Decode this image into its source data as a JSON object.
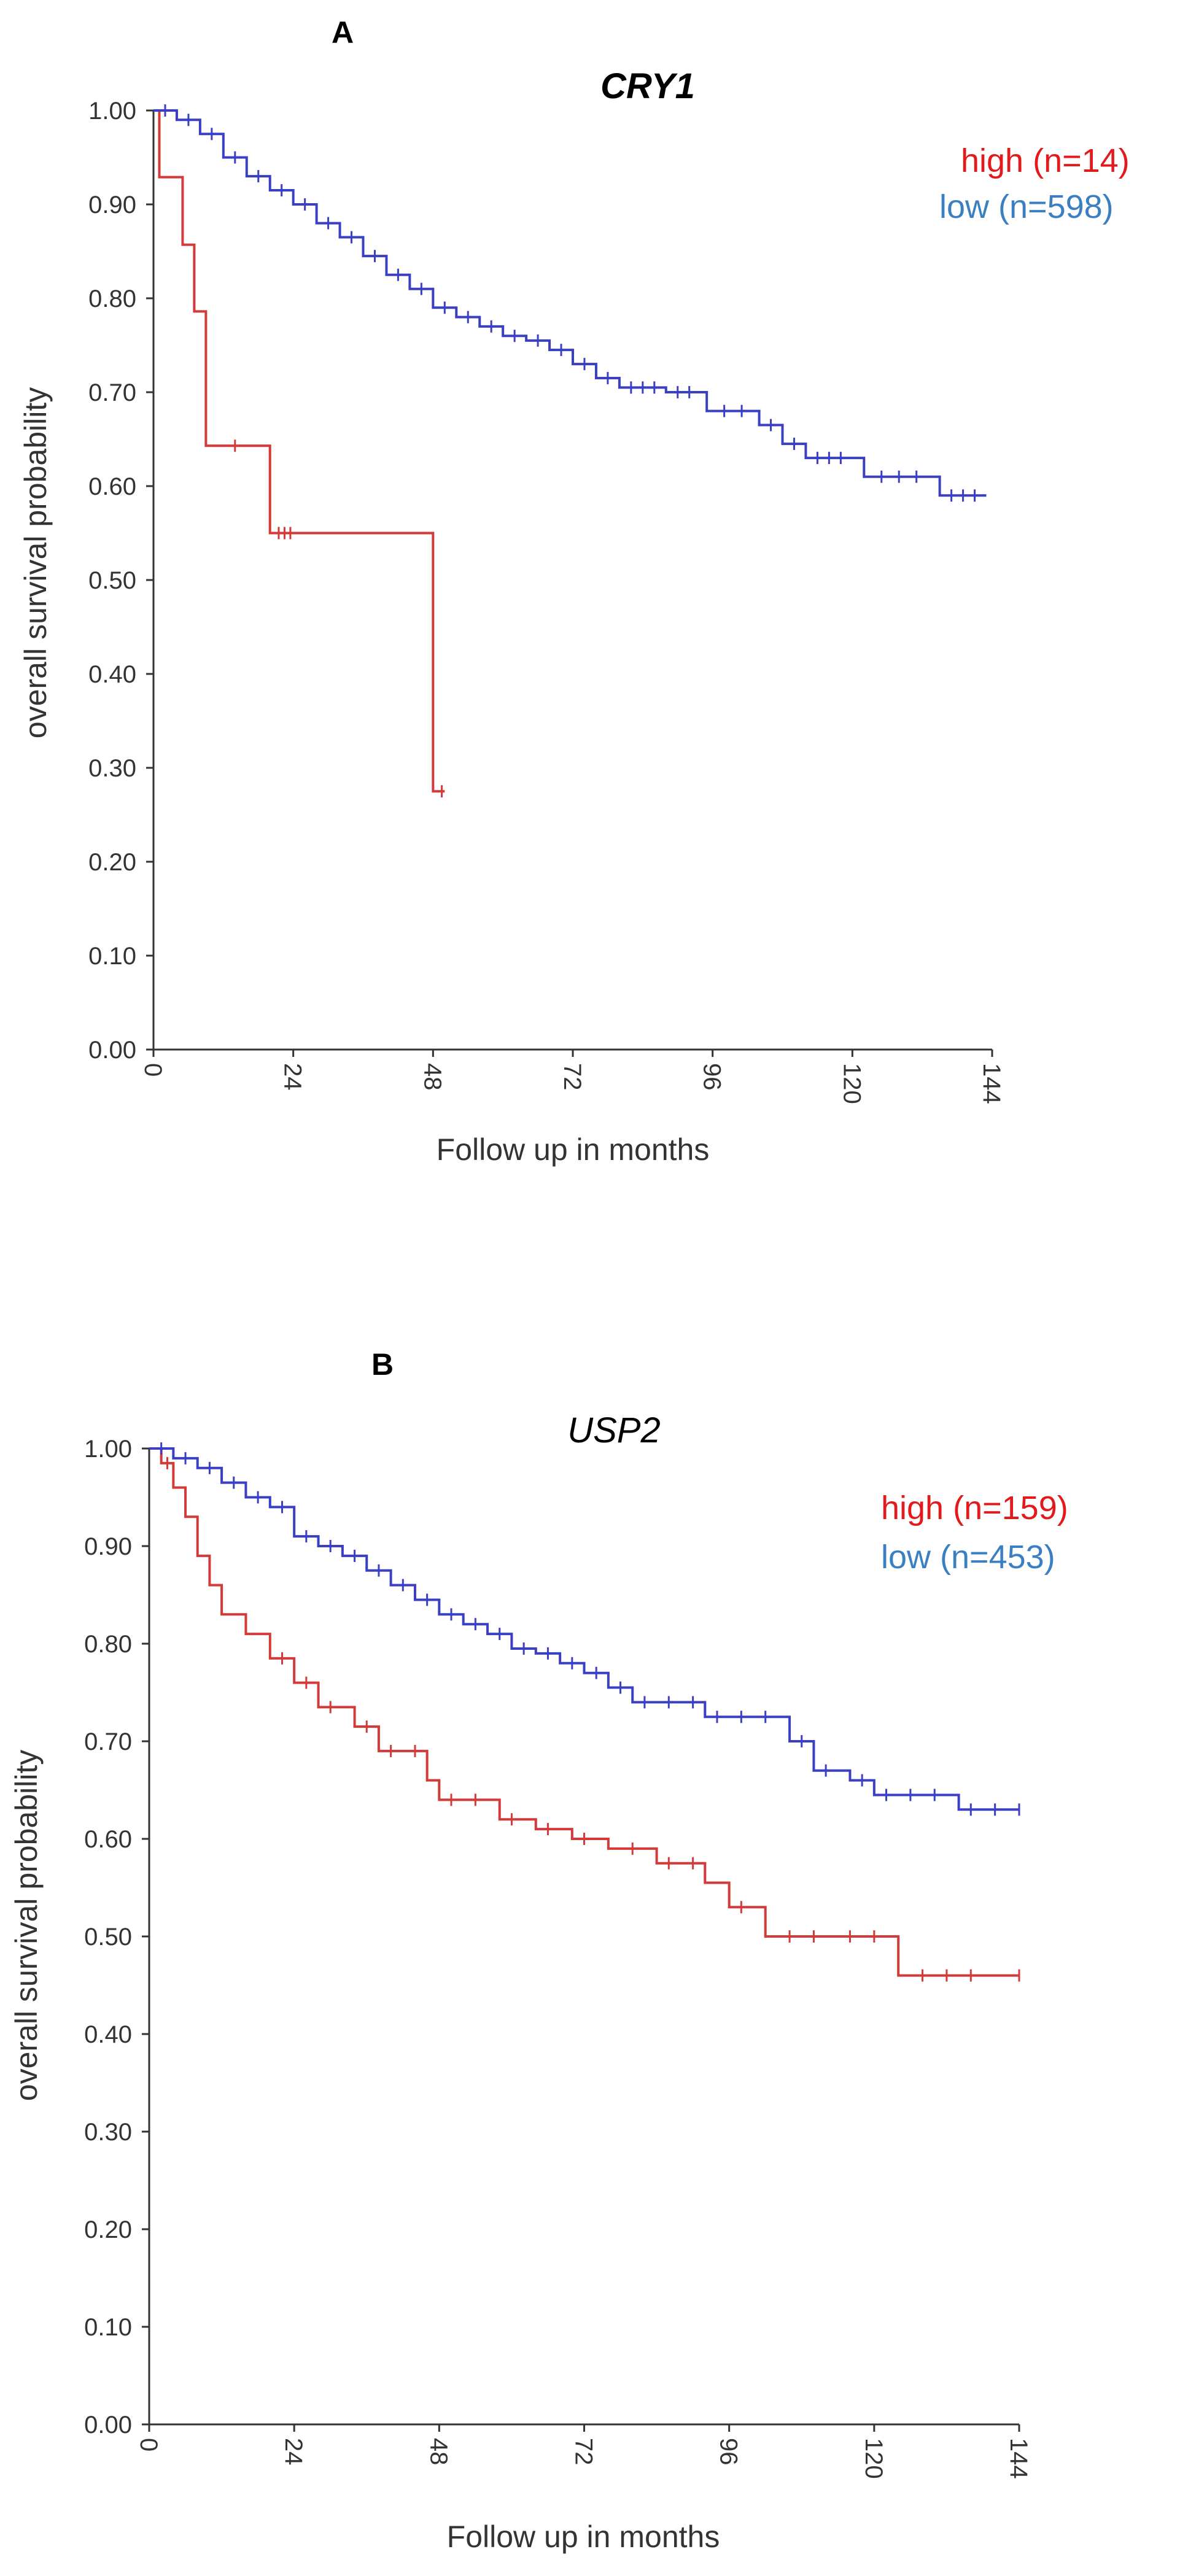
{
  "chart_data": [
    {
      "type": "line",
      "panel": "A",
      "title": "CRY1",
      "xlabel": "Follow up in months",
      "ylabel": "overall survival probability",
      "xlim": [
        0,
        144
      ],
      "ylim": [
        0,
        1
      ],
      "x_ticks": [
        "0",
        "24",
        "48",
        "72",
        "96",
        "120",
        "144"
      ],
      "y_ticks": [
        "0.00",
        "0.10",
        "0.20",
        "0.30",
        "0.40",
        "0.50",
        "0.60",
        "0.70",
        "0.80",
        "0.90",
        "1.00"
      ],
      "legend": [
        {
          "label": "high (n=14)",
          "color": "#e31a1c"
        },
        {
          "label": "low (n=598)",
          "color": "#3a7fc1"
        }
      ],
      "series": [
        {
          "name": "high (n=14)",
          "color": "#d33a3a",
          "steps": [
            [
              0,
              1.0
            ],
            [
              1,
              0.929
            ],
            [
              5,
              0.857
            ],
            [
              7,
              0.786
            ],
            [
              9,
              0.643
            ],
            [
              20,
              0.55
            ],
            [
              48,
              0.275
            ],
            [
              50,
              0.275
            ]
          ],
          "censors": [
            [
              14,
              0.643
            ],
            [
              21.5,
              0.55
            ],
            [
              22.5,
              0.55
            ],
            [
              23.5,
              0.55
            ],
            [
              49.5,
              0.275
            ]
          ]
        },
        {
          "name": "low (n=598)",
          "color": "#3a3fc4",
          "steps": [
            [
              0,
              1.0
            ],
            [
              4,
              0.99
            ],
            [
              8,
              0.975
            ],
            [
              12,
              0.95
            ],
            [
              16,
              0.93
            ],
            [
              20,
              0.915
            ],
            [
              24,
              0.9
            ],
            [
              28,
              0.88
            ],
            [
              32,
              0.865
            ],
            [
              36,
              0.845
            ],
            [
              40,
              0.825
            ],
            [
              44,
              0.81
            ],
            [
              48,
              0.79
            ],
            [
              52,
              0.78
            ],
            [
              56,
              0.77
            ],
            [
              60,
              0.76
            ],
            [
              64,
              0.755
            ],
            [
              68,
              0.745
            ],
            [
              72,
              0.73
            ],
            [
              76,
              0.715
            ],
            [
              80,
              0.705
            ],
            [
              88,
              0.7
            ],
            [
              95,
              0.68
            ],
            [
              104,
              0.665
            ],
            [
              108,
              0.645
            ],
            [
              112,
              0.63
            ],
            [
              122,
              0.61
            ],
            [
              135,
              0.59
            ],
            [
              143,
              0.59
            ]
          ],
          "censors": [
            [
              2,
              1.0
            ],
            [
              6,
              0.99
            ],
            [
              10,
              0.975
            ],
            [
              14,
              0.95
            ],
            [
              18,
              0.93
            ],
            [
              22,
              0.915
            ],
            [
              26,
              0.9
            ],
            [
              30,
              0.88
            ],
            [
              34,
              0.865
            ],
            [
              38,
              0.845
            ],
            [
              42,
              0.825
            ],
            [
              46,
              0.81
            ],
            [
              50,
              0.79
            ],
            [
              54,
              0.78
            ],
            [
              58,
              0.77
            ],
            [
              62,
              0.76
            ],
            [
              66,
              0.755
            ],
            [
              70,
              0.745
            ],
            [
              74,
              0.73
            ],
            [
              78,
              0.715
            ],
            [
              82,
              0.705
            ],
            [
              84,
              0.705
            ],
            [
              86,
              0.705
            ],
            [
              90,
              0.7
            ],
            [
              92,
              0.7
            ],
            [
              98,
              0.68
            ],
            [
              101,
              0.68
            ],
            [
              106,
              0.665
            ],
            [
              110,
              0.645
            ],
            [
              114,
              0.63
            ],
            [
              116,
              0.63
            ],
            [
              118,
              0.63
            ],
            [
              125,
              0.61
            ],
            [
              128,
              0.61
            ],
            [
              131,
              0.61
            ],
            [
              137,
              0.59
            ],
            [
              139,
              0.59
            ],
            [
              141,
              0.59
            ]
          ]
        }
      ]
    },
    {
      "type": "line",
      "panel": "B",
      "title": "USP2",
      "xlabel": "Follow up in months",
      "ylabel": "overall survival probability",
      "xlim": [
        0,
        144
      ],
      "ylim": [
        0,
        1
      ],
      "x_ticks": [
        "0",
        "24",
        "48",
        "72",
        "96",
        "120",
        "144"
      ],
      "y_ticks": [
        "0.00",
        "0.10",
        "0.20",
        "0.30",
        "0.40",
        "0.50",
        "0.60",
        "0.70",
        "0.80",
        "0.90",
        "1.00"
      ],
      "legend": [
        {
          "label": "high (n=159)",
          "color": "#e31a1c"
        },
        {
          "label": "low (n=453)",
          "color": "#3a7fc1"
        }
      ],
      "series": [
        {
          "name": "high (n=159)",
          "color": "#d33a3a",
          "steps": [
            [
              0,
              1.0
            ],
            [
              2,
              0.985
            ],
            [
              4,
              0.96
            ],
            [
              6,
              0.93
            ],
            [
              8,
              0.89
            ],
            [
              10,
              0.86
            ],
            [
              12,
              0.83
            ],
            [
              16,
              0.81
            ],
            [
              20,
              0.785
            ],
            [
              24,
              0.76
            ],
            [
              28,
              0.735
            ],
            [
              34,
              0.715
            ],
            [
              38,
              0.69
            ],
            [
              46,
              0.66
            ],
            [
              48,
              0.64
            ],
            [
              58,
              0.62
            ],
            [
              64,
              0.61
            ],
            [
              70,
              0.6
            ],
            [
              76,
              0.59
            ],
            [
              84,
              0.575
            ],
            [
              92,
              0.555
            ],
            [
              96,
              0.53
            ],
            [
              102,
              0.5
            ],
            [
              124,
              0.46
            ],
            [
              144,
              0.46
            ]
          ],
          "censors": [
            [
              3,
              0.985
            ],
            [
              22,
              0.785
            ],
            [
              26,
              0.76
            ],
            [
              30,
              0.735
            ],
            [
              36,
              0.715
            ],
            [
              40,
              0.69
            ],
            [
              44,
              0.69
            ],
            [
              50,
              0.64
            ],
            [
              54,
              0.64
            ],
            [
              60,
              0.62
            ],
            [
              66,
              0.61
            ],
            [
              72,
              0.6
            ],
            [
              80,
              0.59
            ],
            [
              86,
              0.575
            ],
            [
              90,
              0.575
            ],
            [
              98,
              0.53
            ],
            [
              106,
              0.5
            ],
            [
              110,
              0.5
            ],
            [
              116,
              0.5
            ],
            [
              120,
              0.5
            ],
            [
              128,
              0.46
            ],
            [
              132,
              0.46
            ],
            [
              136,
              0.46
            ],
            [
              144,
              0.46
            ]
          ]
        },
        {
          "name": "low (n=453)",
          "color": "#3a3fc4",
          "steps": [
            [
              0,
              1.0
            ],
            [
              4,
              0.99
            ],
            [
              8,
              0.98
            ],
            [
              12,
              0.965
            ],
            [
              16,
              0.95
            ],
            [
              20,
              0.94
            ],
            [
              24,
              0.91
            ],
            [
              28,
              0.9
            ],
            [
              32,
              0.89
            ],
            [
              36,
              0.875
            ],
            [
              40,
              0.86
            ],
            [
              44,
              0.845
            ],
            [
              48,
              0.83
            ],
            [
              52,
              0.82
            ],
            [
              56,
              0.81
            ],
            [
              60,
              0.795
            ],
            [
              64,
              0.79
            ],
            [
              68,
              0.78
            ],
            [
              72,
              0.77
            ],
            [
              76,
              0.755
            ],
            [
              80,
              0.74
            ],
            [
              92,
              0.725
            ],
            [
              106,
              0.7
            ],
            [
              110,
              0.67
            ],
            [
              116,
              0.66
            ],
            [
              120,
              0.645
            ],
            [
              134,
              0.63
            ],
            [
              144,
              0.63
            ]
          ],
          "censors": [
            [
              2,
              1.0
            ],
            [
              6,
              0.99
            ],
            [
              10,
              0.98
            ],
            [
              14,
              0.965
            ],
            [
              18,
              0.95
            ],
            [
              22,
              0.94
            ],
            [
              26,
              0.91
            ],
            [
              30,
              0.9
            ],
            [
              34,
              0.89
            ],
            [
              38,
              0.875
            ],
            [
              42,
              0.86
            ],
            [
              46,
              0.845
            ],
            [
              50,
              0.83
            ],
            [
              54,
              0.82
            ],
            [
              58,
              0.81
            ],
            [
              62,
              0.795
            ],
            [
              66,
              0.79
            ],
            [
              70,
              0.78
            ],
            [
              74,
              0.77
            ],
            [
              78,
              0.755
            ],
            [
              82,
              0.74
            ],
            [
              86,
              0.74
            ],
            [
              90,
              0.74
            ],
            [
              94,
              0.725
            ],
            [
              98,
              0.725
            ],
            [
              102,
              0.725
            ],
            [
              108,
              0.7
            ],
            [
              112,
              0.67
            ],
            [
              118,
              0.66
            ],
            [
              122,
              0.645
            ],
            [
              126,
              0.645
            ],
            [
              130,
              0.645
            ],
            [
              136,
              0.63
            ],
            [
              140,
              0.63
            ],
            [
              144,
              0.63
            ]
          ]
        }
      ]
    }
  ]
}
